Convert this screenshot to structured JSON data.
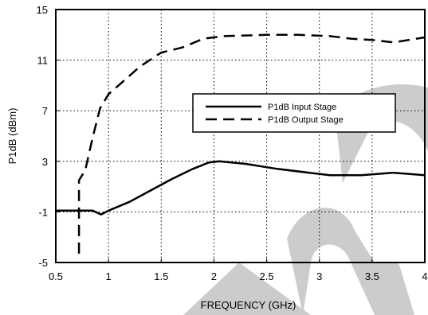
{
  "chart_data": {
    "type": "line",
    "xlabel": "FREQUENCY (GHz)",
    "ylabel": "P1dB (dBm)",
    "xlim": [
      0.5,
      4
    ],
    "ylim": [
      -5,
      15
    ],
    "x_ticks": [
      "0.5",
      "1",
      "1.5",
      "2",
      "2.5",
      "3",
      "3.5",
      "4"
    ],
    "y_ticks": [
      "15",
      "11",
      "7",
      "3",
      "-1",
      "-5"
    ],
    "grid": "dotted",
    "legend_position": "middle-right",
    "series": [
      {
        "name": "P1dB Input Stage",
        "style": "solid",
        "points": [
          [
            0.5,
            -0.9
          ],
          [
            0.7,
            -0.9
          ],
          [
            0.85,
            -0.9
          ],
          [
            0.93,
            -1.2
          ],
          [
            1.0,
            -0.9
          ],
          [
            1.2,
            -0.2
          ],
          [
            1.4,
            0.7
          ],
          [
            1.6,
            1.6
          ],
          [
            1.8,
            2.4
          ],
          [
            1.95,
            2.9
          ],
          [
            2.05,
            3.0
          ],
          [
            2.3,
            2.8
          ],
          [
            2.6,
            2.4
          ],
          [
            2.9,
            2.1
          ],
          [
            3.1,
            1.9
          ],
          [
            3.4,
            1.9
          ],
          [
            3.7,
            2.1
          ],
          [
            4.0,
            1.9
          ]
        ]
      },
      {
        "name": "P1dB Output Stage",
        "style": "dashed",
        "points": [
          [
            0.72,
            -4.3
          ],
          [
            0.72,
            1.5
          ],
          [
            0.78,
            2.3
          ],
          [
            0.85,
            4.9
          ],
          [
            0.92,
            7.2
          ],
          [
            1.0,
            8.3
          ],
          [
            1.15,
            9.4
          ],
          [
            1.3,
            10.5
          ],
          [
            1.5,
            11.6
          ],
          [
            1.7,
            12.0
          ],
          [
            1.9,
            12.7
          ],
          [
            2.1,
            12.9
          ],
          [
            2.5,
            13.0
          ],
          [
            2.8,
            13.0
          ],
          [
            3.1,
            12.9
          ],
          [
            3.3,
            12.7
          ],
          [
            3.5,
            12.6
          ],
          [
            3.7,
            12.4
          ],
          [
            3.85,
            12.6
          ],
          [
            4.0,
            12.8
          ]
        ]
      }
    ],
    "colors": {
      "line": "#000000",
      "grid": "#000000",
      "watermark": "#cccccc"
    }
  }
}
